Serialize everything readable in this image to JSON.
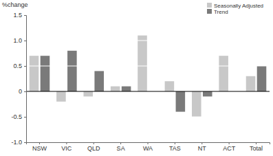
{
  "chart_data": {
    "type": "bar",
    "y_label": "%change",
    "categories": [
      "NSW",
      "VIC",
      "QLD",
      "SA",
      "WA",
      "TAS",
      "NT",
      "ACT",
      "Total"
    ],
    "series": [
      {
        "name": "Seasonally Adjusted",
        "color": "#c8c8c8",
        "values": [
          0.7,
          -0.2,
          -0.1,
          0.1,
          1.1,
          0.2,
          -0.5,
          0.7,
          0.3
        ]
      },
      {
        "name": "Trend",
        "color": "#7a7a7a",
        "values": [
          0.7,
          0.8,
          0.4,
          0.1,
          null,
          -0.4,
          -0.1,
          null,
          0.5
        ]
      }
    ],
    "ylim": [
      -1,
      1.5
    ],
    "yticks": [
      {
        "value": -1,
        "label": "-1.0"
      },
      -0.5,
      0,
      0.5,
      {
        "value": 1,
        "label": "1.0"
      },
      1.5
    ],
    "grid": true,
    "legend": "top-right"
  }
}
